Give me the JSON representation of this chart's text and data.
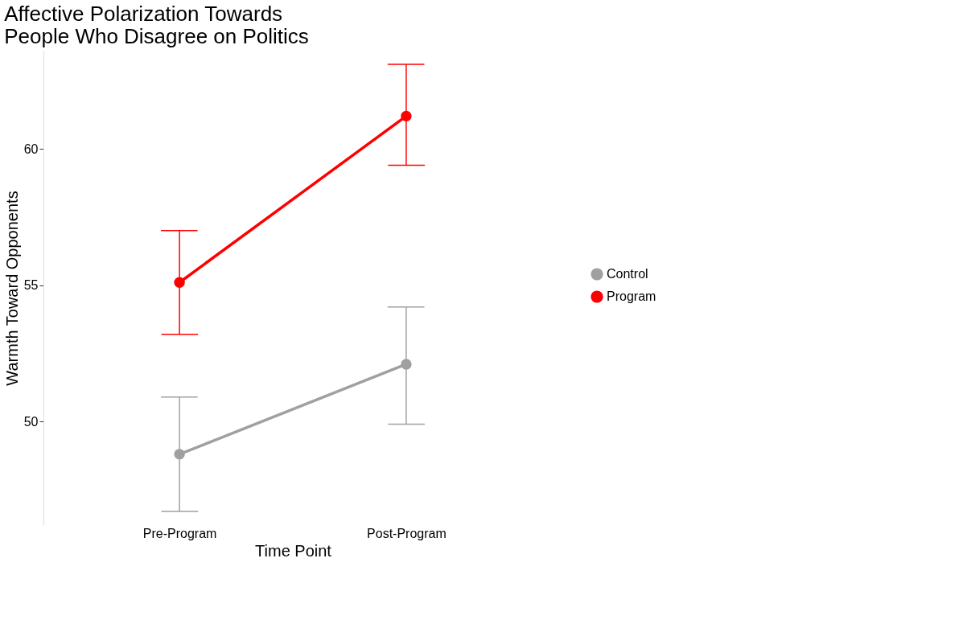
{
  "chart_data": {
    "type": "line",
    "title": "Affective Polarization Towards\nPeople Who Disagree on Politics",
    "xlabel": "Time Point",
    "ylabel": "Warmth Toward Opponents",
    "categories": [
      "Pre-Program",
      "Post-Program"
    ],
    "series": [
      {
        "name": "Control",
        "color": "#a0a0a0",
        "values": [
          48.8,
          52.1
        ],
        "errors": [
          [
            46.7,
            50.9
          ],
          [
            49.9,
            54.2
          ]
        ]
      },
      {
        "name": "Program",
        "color": "#ff0000",
        "values": [
          55.1,
          61.2
        ],
        "errors": [
          [
            53.2,
            57.0
          ],
          [
            59.4,
            63.1
          ]
        ]
      }
    ],
    "ylim": [
      46.2,
      63.6
    ],
    "yticks": [
      50,
      55,
      60
    ],
    "grid": false,
    "legend": "right",
    "marker": "circle",
    "line_style": "solid"
  }
}
